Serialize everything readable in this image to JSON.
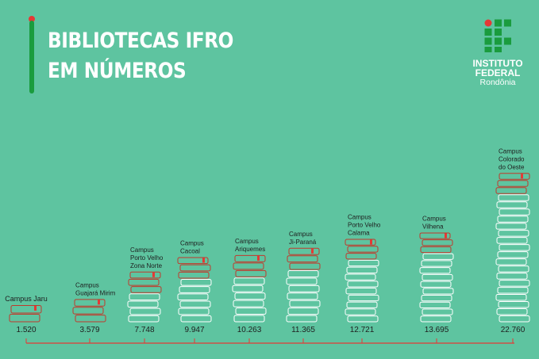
{
  "header": {
    "title_line1": "BIBLIOTECAS IFRO",
    "title_line2": "EM NÚMEROS"
  },
  "logo": {
    "line1": "INSTITUTO",
    "line2": "FEDERAL",
    "line3": "Rondônia",
    "icon": "ifro-logo-icon"
  },
  "colors": {
    "background": "#5ec4a0",
    "accent_green": "#1a9c3e",
    "accent_red": "#e53935",
    "text": "#ffffff",
    "label_text": "#1e1e1e",
    "book_outline": "#ffffff",
    "book_outline_top": "#c0392b"
  },
  "chart_data": {
    "type": "bar",
    "title": "",
    "xlabel": "",
    "ylabel": "",
    "ylim": [
      0,
      24000
    ],
    "grid": false,
    "legend": "none",
    "categories": [
      "Campus Jaru",
      "Campus Guajará Mirim",
      "Campus Porto Velho Zona Norte",
      "Campus Cacoal",
      "Campus Ariquemes",
      "Campus Ji-Paraná",
      "Campus Porto Velho Calama",
      "Campus Vilhena",
      "Campus Colorado do Oeste"
    ],
    "category_lines": [
      [
        "Campus Jaru"
      ],
      [
        "Campus",
        "Guajará Mirim"
      ],
      [
        "Campus",
        "Porto Velho",
        "Zona Norte"
      ],
      [
        "Campus",
        "Cacoal"
      ],
      [
        "Campus",
        "Ariquemes"
      ],
      [
        "Campus",
        "Ji-Paraná"
      ],
      [
        "Campus",
        "Porto Velho",
        "Calama"
      ],
      [
        "Campus",
        "Vilhena"
      ],
      [
        "Campus",
        "Colorado",
        "do Oeste"
      ]
    ],
    "values": [
      1520,
      3579,
      7748,
      9947,
      10263,
      11365,
      12721,
      13695,
      22760
    ],
    "value_labels": [
      "1.520",
      "3.579",
      "7.748",
      "9.947",
      "10.263",
      "11.365",
      "12.721",
      "13.695",
      "22.760"
    ]
  }
}
